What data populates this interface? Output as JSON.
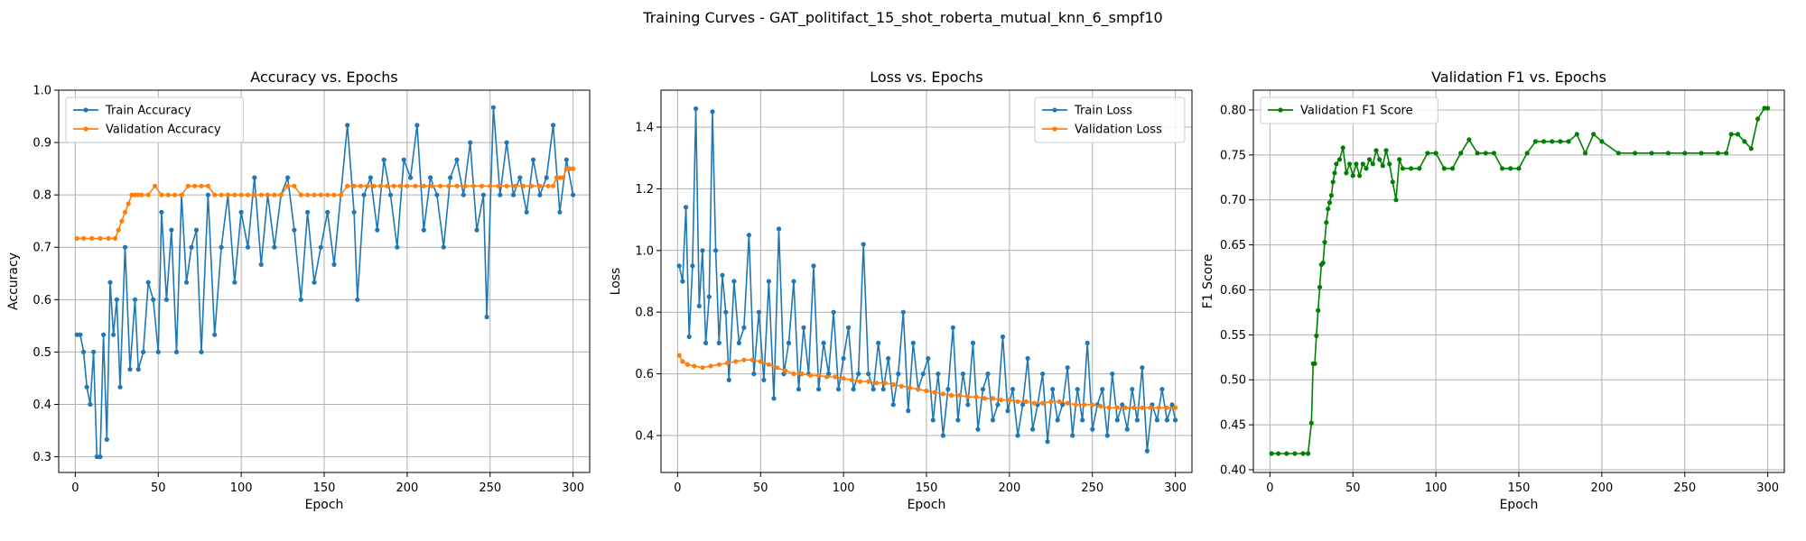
{
  "figure_title": "Training Curves - GAT_politifact_15_shot_roberta_mutual_knn_6_smpf10",
  "colors": {
    "train": "#1f77b4",
    "validation": "#ff7f0e",
    "f1": "#008000"
  },
  "chart_data": [
    {
      "type": "line",
      "title": "Accuracy vs. Epochs",
      "xlabel": "Epoch",
      "ylabel": "Accuracy",
      "xlim": [
        -10,
        310
      ],
      "ylim": [
        0.27,
        1.0
      ],
      "xticks": [
        0,
        50,
        100,
        150,
        200,
        250,
        300
      ],
      "yticks": [
        0.3,
        0.4,
        0.5,
        0.6,
        0.7,
        0.8,
        0.9,
        1.0
      ],
      "ytick_labels": [
        "0.3",
        "0.4",
        "0.5",
        "0.6",
        "0.7",
        "0.8",
        "0.9",
        "1.0"
      ],
      "grid": true,
      "legend_position": "top-left",
      "series": [
        {
          "name": "Train Accuracy",
          "color": "#1f77b4",
          "x": [
            1,
            3,
            5,
            7,
            9,
            11,
            13,
            15,
            17,
            19,
            21,
            23,
            25,
            27,
            30,
            33,
            36,
            38,
            41,
            44,
            47,
            50,
            52,
            55,
            58,
            61,
            64,
            67,
            70,
            73,
            76,
            80,
            84,
            88,
            92,
            96,
            100,
            104,
            108,
            112,
            116,
            120,
            124,
            128,
            132,
            136,
            140,
            144,
            148,
            152,
            156,
            160,
            164,
            168,
            170,
            174,
            178,
            182,
            186,
            190,
            194,
            198,
            202,
            206,
            210,
            214,
            218,
            222,
            226,
            230,
            234,
            238,
            242,
            246,
            248,
            252,
            256,
            260,
            264,
            268,
            272,
            276,
            280,
            284,
            288,
            292,
            296,
            300
          ],
          "y": [
            0.533,
            0.533,
            0.5,
            0.433,
            0.4,
            0.5,
            0.3,
            0.3,
            0.533,
            0.333,
            0.633,
            0.533,
            0.6,
            0.433,
            0.7,
            0.467,
            0.6,
            0.467,
            0.5,
            0.633,
            0.6,
            0.5,
            0.767,
            0.6,
            0.733,
            0.5,
            0.8,
            0.633,
            0.7,
            0.733,
            0.5,
            0.8,
            0.533,
            0.7,
            0.8,
            0.633,
            0.767,
            0.7,
            0.833,
            0.667,
            0.8,
            0.7,
            0.8,
            0.833,
            0.733,
            0.6,
            0.767,
            0.633,
            0.7,
            0.767,
            0.667,
            0.8,
            0.933,
            0.767,
            0.6,
            0.8,
            0.833,
            0.733,
            0.867,
            0.8,
            0.7,
            0.867,
            0.833,
            0.933,
            0.733,
            0.833,
            0.8,
            0.7,
            0.833,
            0.867,
            0.8,
            0.9,
            0.733,
            0.8,
            0.567,
            0.967,
            0.8,
            0.9,
            0.8,
            0.833,
            0.767,
            0.867,
            0.8,
            0.833,
            0.933,
            0.767,
            0.867,
            0.8
          ]
        },
        {
          "name": "Validation Accuracy",
          "color": "#ff7f0e",
          "x": [
            1,
            5,
            10,
            15,
            20,
            24,
            26,
            28,
            30,
            32,
            34,
            36,
            38,
            40,
            44,
            48,
            52,
            56,
            60,
            64,
            68,
            72,
            76,
            80,
            84,
            88,
            92,
            96,
            100,
            104,
            108,
            112,
            116,
            120,
            124,
            128,
            132,
            136,
            140,
            144,
            148,
            152,
            156,
            160,
            164,
            168,
            172,
            176,
            180,
            184,
            188,
            192,
            196,
            200,
            205,
            210,
            215,
            220,
            225,
            230,
            235,
            240,
            245,
            250,
            255,
            260,
            265,
            270,
            275,
            280,
            285,
            288,
            290,
            292,
            294,
            296,
            298,
            300
          ],
          "y": [
            0.717,
            0.717,
            0.717,
            0.717,
            0.717,
            0.717,
            0.733,
            0.75,
            0.767,
            0.783,
            0.8,
            0.8,
            0.8,
            0.8,
            0.8,
            0.817,
            0.8,
            0.8,
            0.8,
            0.8,
            0.817,
            0.817,
            0.817,
            0.817,
            0.8,
            0.8,
            0.8,
            0.8,
            0.8,
            0.8,
            0.8,
            0.8,
            0.8,
            0.8,
            0.8,
            0.817,
            0.817,
            0.8,
            0.8,
            0.8,
            0.8,
            0.8,
            0.8,
            0.8,
            0.817,
            0.817,
            0.817,
            0.817,
            0.817,
            0.817,
            0.817,
            0.817,
            0.817,
            0.817,
            0.817,
            0.817,
            0.817,
            0.817,
            0.817,
            0.817,
            0.817,
            0.817,
            0.817,
            0.817,
            0.817,
            0.817,
            0.817,
            0.817,
            0.817,
            0.817,
            0.817,
            0.817,
            0.833,
            0.833,
            0.833,
            0.85,
            0.85,
            0.85
          ]
        }
      ]
    },
    {
      "type": "line",
      "title": "Loss vs. Epochs",
      "xlabel": "Epoch",
      "ylabel": "Loss",
      "xlim": [
        -10,
        310
      ],
      "ylim": [
        0.28,
        1.52
      ],
      "xticks": [
        0,
        50,
        100,
        150,
        200,
        250,
        300
      ],
      "yticks": [
        0.4,
        0.6,
        0.8,
        1.0,
        1.2,
        1.4
      ],
      "ytick_labels": [
        "0.4",
        "0.6",
        "0.8",
        "1.0",
        "1.2",
        "1.4"
      ],
      "grid": true,
      "legend_position": "top-right",
      "series": [
        {
          "name": "Train Loss",
          "color": "#1f77b4",
          "x": [
            1,
            3,
            5,
            7,
            9,
            11,
            13,
            15,
            17,
            19,
            21,
            23,
            25,
            27,
            29,
            31,
            34,
            37,
            40,
            43,
            46,
            49,
            52,
            55,
            58,
            61,
            64,
            67,
            70,
            73,
            76,
            79,
            82,
            85,
            88,
            91,
            94,
            97,
            100,
            103,
            106,
            109,
            112,
            115,
            118,
            121,
            124,
            127,
            130,
            133,
            136,
            139,
            142,
            145,
            148,
            151,
            154,
            157,
            160,
            163,
            166,
            169,
            172,
            175,
            178,
            181,
            184,
            187,
            190,
            193,
            196,
            199,
            202,
            205,
            208,
            211,
            214,
            217,
            220,
            223,
            226,
            229,
            232,
            235,
            238,
            241,
            244,
            247,
            250,
            253,
            256,
            259,
            262,
            265,
            268,
            271,
            274,
            277,
            280,
            283,
            286,
            289,
            292,
            295,
            298,
            300
          ],
          "y": [
            0.95,
            0.9,
            1.14,
            0.72,
            0.95,
            1.46,
            0.82,
            1.0,
            0.7,
            0.85,
            1.45,
            1.0,
            0.7,
            0.92,
            0.8,
            0.58,
            0.9,
            0.7,
            0.75,
            1.05,
            0.6,
            0.8,
            0.58,
            0.9,
            0.52,
            1.07,
            0.6,
            0.7,
            0.9,
            0.55,
            0.75,
            0.6,
            0.95,
            0.55,
            0.7,
            0.6,
            0.8,
            0.55,
            0.65,
            0.75,
            0.55,
            0.6,
            1.02,
            0.6,
            0.55,
            0.7,
            0.55,
            0.65,
            0.5,
            0.6,
            0.8,
            0.48,
            0.7,
            0.55,
            0.6,
            0.65,
            0.45,
            0.6,
            0.4,
            0.55,
            0.75,
            0.45,
            0.6,
            0.5,
            0.7,
            0.42,
            0.55,
            0.6,
            0.45,
            0.5,
            0.72,
            0.48,
            0.55,
            0.4,
            0.5,
            0.65,
            0.42,
            0.5,
            0.6,
            0.38,
            0.55,
            0.45,
            0.5,
            0.62,
            0.4,
            0.55,
            0.45,
            0.7,
            0.42,
            0.5,
            0.55,
            0.4,
            0.6,
            0.45,
            0.5,
            0.42,
            0.55,
            0.45,
            0.62,
            0.35,
            0.5,
            0.45,
            0.55,
            0.45,
            0.5,
            0.45
          ]
        },
        {
          "name": "Validation Loss",
          "color": "#ff7f0e",
          "x": [
            1,
            3,
            6,
            10,
            15,
            20,
            25,
            30,
            35,
            40,
            45,
            50,
            55,
            60,
            65,
            70,
            75,
            80,
            85,
            90,
            95,
            100,
            105,
            110,
            115,
            120,
            125,
            130,
            135,
            140,
            145,
            150,
            155,
            160,
            165,
            170,
            175,
            180,
            185,
            190,
            195,
            200,
            205,
            210,
            215,
            220,
            225,
            230,
            235,
            240,
            245,
            250,
            255,
            260,
            265,
            270,
            275,
            280,
            285,
            290,
            295,
            300
          ],
          "y": [
            0.66,
            0.64,
            0.63,
            0.625,
            0.62,
            0.625,
            0.63,
            0.635,
            0.64,
            0.645,
            0.645,
            0.64,
            0.63,
            0.62,
            0.61,
            0.6,
            0.6,
            0.595,
            0.595,
            0.59,
            0.59,
            0.585,
            0.58,
            0.575,
            0.575,
            0.57,
            0.57,
            0.565,
            0.56,
            0.555,
            0.55,
            0.545,
            0.54,
            0.535,
            0.53,
            0.53,
            0.525,
            0.525,
            0.52,
            0.52,
            0.515,
            0.515,
            0.51,
            0.51,
            0.505,
            0.505,
            0.51,
            0.51,
            0.505,
            0.5,
            0.5,
            0.5,
            0.495,
            0.49,
            0.49,
            0.49,
            0.49,
            0.49,
            0.49,
            0.49,
            0.49,
            0.49
          ]
        }
      ]
    },
    {
      "type": "line",
      "title": "Validation F1 vs. Epochs",
      "xlabel": "Epoch",
      "ylabel": "F1 Score",
      "xlim": [
        -10,
        310
      ],
      "ylim": [
        0.397,
        0.822
      ],
      "xticks": [
        0,
        50,
        100,
        150,
        200,
        250,
        300
      ],
      "yticks": [
        0.4,
        0.45,
        0.5,
        0.55,
        0.6,
        0.65,
        0.7,
        0.75,
        0.8
      ],
      "ytick_labels": [
        "0.40",
        "0.45",
        "0.50",
        "0.55",
        "0.60",
        "0.65",
        "0.70",
        "0.75",
        "0.80"
      ],
      "grid": true,
      "legend_position": "top-left",
      "series": [
        {
          "name": "Validation F1 Score",
          "color": "#008000",
          "x": [
            1,
            5,
            10,
            15,
            20,
            23,
            25,
            26,
            27,
            28,
            29,
            30,
            31,
            32,
            33,
            34,
            35,
            36,
            37,
            38,
            39,
            40,
            42,
            44,
            46,
            48,
            50,
            52,
            54,
            56,
            58,
            60,
            62,
            64,
            66,
            68,
            70,
            72,
            74,
            76,
            78,
            80,
            85,
            90,
            95,
            100,
            105,
            110,
            115,
            120,
            125,
            130,
            135,
            140,
            145,
            150,
            155,
            160,
            165,
            170,
            175,
            180,
            185,
            190,
            195,
            200,
            210,
            220,
            230,
            240,
            250,
            260,
            270,
            275,
            278,
            282,
            286,
            290,
            294,
            298,
            300
          ],
          "y": [
            0.418,
            0.418,
            0.418,
            0.418,
            0.418,
            0.418,
            0.452,
            0.518,
            0.518,
            0.549,
            0.577,
            0.603,
            0.628,
            0.63,
            0.653,
            0.675,
            0.69,
            0.697,
            0.705,
            0.72,
            0.73,
            0.74,
            0.745,
            0.758,
            0.73,
            0.74,
            0.727,
            0.74,
            0.727,
            0.74,
            0.735,
            0.745,
            0.74,
            0.755,
            0.745,
            0.738,
            0.755,
            0.74,
            0.72,
            0.7,
            0.745,
            0.735,
            0.735,
            0.735,
            0.752,
            0.752,
            0.735,
            0.735,
            0.752,
            0.767,
            0.752,
            0.752,
            0.752,
            0.735,
            0.735,
            0.735,
            0.752,
            0.765,
            0.765,
            0.765,
            0.765,
            0.765,
            0.773,
            0.752,
            0.773,
            0.765,
            0.752,
            0.752,
            0.752,
            0.752,
            0.752,
            0.752,
            0.752,
            0.752,
            0.773,
            0.773,
            0.765,
            0.757,
            0.79,
            0.802,
            0.802
          ]
        }
      ]
    }
  ]
}
